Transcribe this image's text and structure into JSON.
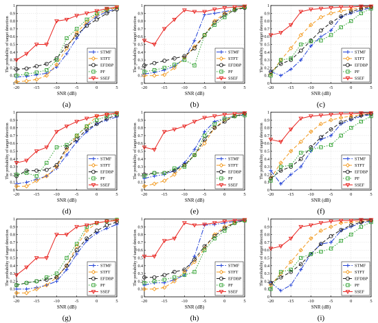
{
  "figure": {
    "xlabel": "SNR (dB)",
    "ylabel": "The probability of target detection",
    "xticks": [
      -20,
      -15,
      -10,
      -5,
      0,
      5
    ],
    "yticks": [
      0,
      0.1,
      0.2,
      0.3,
      0.4,
      0.5,
      0.6,
      0.7,
      0.8,
      0.9,
      1
    ],
    "legend_labels": [
      "STMF",
      "STFT",
      "EFDBP",
      "PF",
      "SSEF"
    ],
    "series_styles": [
      {
        "name": "STMF",
        "color": "#1f3fd6",
        "dash": "7,2,1.5,2",
        "marker": "plus"
      },
      {
        "name": "STFT",
        "color": "#f39a1e",
        "dash": "5,3",
        "marker": "diamond"
      },
      {
        "name": "EFDBP",
        "color": "#1a1a1a",
        "dash": "5,3",
        "marker": "circle"
      },
      {
        "name": "PF",
        "color": "#2ca02c",
        "dash": "1.5,2",
        "marker": "square"
      },
      {
        "name": "SSEF",
        "color": "#e8201c",
        "dash": "none",
        "marker": "triangle"
      }
    ]
  },
  "chart_data": [
    {
      "type": "line",
      "panel_label": "(a)",
      "legend_position": "bottom-right",
      "xlabel": "SNR (dB)",
      "ylabel": "The probability of target detection",
      "xlim": [
        -20,
        5
      ],
      "ylim": [
        0,
        1
      ],
      "grid": true,
      "x": [
        -20,
        -17.5,
        -15,
        -12.5,
        -10,
        -7.5,
        -5,
        -2.5,
        0,
        2.5,
        5
      ],
      "series": [
        {
          "name": "STMF",
          "values": [
            0.08,
            0.09,
            0.11,
            0.13,
            0.21,
            0.38,
            0.58,
            0.76,
            0.86,
            0.92,
            0.96
          ]
        },
        {
          "name": "STFT",
          "values": [
            0.02,
            0.03,
            0.05,
            0.1,
            0.24,
            0.45,
            0.65,
            0.79,
            0.88,
            0.94,
            0.97
          ]
        },
        {
          "name": "EFDBP",
          "values": [
            0.18,
            0.19,
            0.22,
            0.25,
            0.32,
            0.48,
            0.62,
            0.74,
            0.82,
            0.9,
            0.95
          ]
        },
        {
          "name": "PF",
          "values": [
            0.1,
            0.12,
            0.14,
            0.17,
            0.3,
            0.58,
            0.7,
            0.82,
            0.9,
            0.95,
            0.98
          ]
        },
        {
          "name": "SSEF",
          "values": [
            0.3,
            0.38,
            0.5,
            0.5,
            0.8,
            0.82,
            0.87,
            0.9,
            0.93,
            0.96,
            0.98
          ]
        }
      ]
    },
    {
      "type": "line",
      "panel_label": "(b)",
      "legend_position": "bottom-right",
      "xlabel": "SNR (dB)",
      "ylabel": "The probability of target detection",
      "xlim": [
        -20,
        5
      ],
      "ylim": [
        0,
        1
      ],
      "grid": true,
      "x": [
        -20,
        -17.5,
        -15,
        -12.5,
        -10,
        -7.5,
        -5,
        -2.5,
        0,
        2.5,
        5
      ],
      "series": [
        {
          "name": "STMF",
          "values": [
            0.12,
            0.14,
            0.17,
            0.22,
            0.32,
            0.55,
            0.88,
            0.9,
            0.92,
            0.95,
            0.97
          ]
        },
        {
          "name": "STFT",
          "values": [
            0.1,
            0.1,
            0.11,
            0.2,
            0.33,
            0.47,
            0.62,
            0.8,
            0.9,
            0.95,
            0.98
          ]
        },
        {
          "name": "EFDBP",
          "values": [
            0.23,
            0.26,
            0.29,
            0.32,
            0.35,
            0.45,
            0.62,
            0.78,
            0.88,
            0.94,
            0.97
          ]
        },
        {
          "name": "PF",
          "values": [
            0.15,
            0.17,
            0.2,
            0.24,
            0.3,
            0.23,
            0.62,
            0.75,
            0.85,
            0.95,
            0.98
          ]
        },
        {
          "name": "SSEF",
          "values": [
            0.55,
            0.5,
            0.7,
            0.82,
            0.94,
            0.92,
            0.92,
            0.95,
            0.97,
            0.98,
            0.99
          ]
        }
      ]
    },
    {
      "type": "line",
      "panel_label": "(c)",
      "legend_position": "bottom-right",
      "xlabel": "SNR (dB)",
      "ylabel": "The probability of target detection",
      "xlim": [
        -20,
        5
      ],
      "ylim": [
        0,
        1
      ],
      "grid": true,
      "x": [
        -20,
        -17.5,
        -15,
        -12.5,
        -10,
        -7.5,
        -5,
        -2.5,
        0,
        2.5,
        5
      ],
      "series": [
        {
          "name": "STMF",
          "values": [
            0.15,
            0.1,
            0.18,
            0.3,
            0.48,
            0.6,
            0.68,
            0.85,
            0.9,
            0.94,
            0.97
          ]
        },
        {
          "name": "STFT",
          "values": [
            0.12,
            0.3,
            0.45,
            0.62,
            0.75,
            0.85,
            0.9,
            0.93,
            0.95,
            0.97,
            0.98
          ]
        },
        {
          "name": "EFDBP",
          "values": [
            0.15,
            0.25,
            0.3,
            0.42,
            0.55,
            0.68,
            0.78,
            0.86,
            0.92,
            0.96,
            0.98
          ]
        },
        {
          "name": "PF",
          "values": [
            0.1,
            0.3,
            0.32,
            0.5,
            0.54,
            0.55,
            0.62,
            0.72,
            0.8,
            0.9,
            0.96
          ]
        },
        {
          "name": "SSEF",
          "values": [
            0.62,
            0.65,
            0.75,
            0.92,
            0.95,
            0.96,
            0.97,
            0.98,
            0.98,
            0.99,
            0.99
          ]
        }
      ]
    },
    {
      "type": "line",
      "panel_label": "(d)",
      "legend_position": "bottom-right",
      "xlabel": "SNR (dB)",
      "ylabel": "The probability of target detection",
      "xlim": [
        -20,
        5
      ],
      "ylim": [
        0,
        1
      ],
      "grid": true,
      "x": [
        -20,
        -17.5,
        -15,
        -12.5,
        -10,
        -7.5,
        -5,
        -2.5,
        0,
        2.5,
        5
      ],
      "series": [
        {
          "name": "STMF",
          "values": [
            0.08,
            0.1,
            0.14,
            0.18,
            0.28,
            0.45,
            0.62,
            0.75,
            0.85,
            0.9,
            0.94
          ]
        },
        {
          "name": "STFT",
          "values": [
            0.05,
            0.05,
            0.12,
            0.18,
            0.3,
            0.52,
            0.7,
            0.82,
            0.95,
            0.97,
            0.99
          ]
        },
        {
          "name": "EFDBP",
          "values": [
            0.18,
            0.25,
            0.25,
            0.26,
            0.32,
            0.55,
            0.65,
            0.78,
            0.85,
            0.92,
            0.96
          ]
        },
        {
          "name": "PF",
          "values": [
            0.2,
            0.22,
            0.18,
            0.35,
            0.55,
            0.58,
            0.7,
            0.82,
            0.9,
            0.95,
            0.98
          ]
        },
        {
          "name": "SSEF",
          "values": [
            0.35,
            0.38,
            0.5,
            0.55,
            0.75,
            0.82,
            0.88,
            0.92,
            0.95,
            0.97,
            0.99
          ]
        }
      ]
    },
    {
      "type": "line",
      "panel_label": "(e)",
      "legend_position": "bottom-right",
      "xlabel": "SNR (dB)",
      "ylabel": "The probability of target detection",
      "xlim": [
        -20,
        5
      ],
      "ylim": [
        0,
        1
      ],
      "grid": true,
      "x": [
        -20,
        -17.5,
        -15,
        -12.5,
        -10,
        -7.5,
        -5,
        -2.5,
        0,
        2.5,
        5
      ],
      "series": [
        {
          "name": "STMF",
          "values": [
            0.15,
            0.18,
            0.2,
            0.25,
            0.35,
            0.52,
            0.75,
            0.88,
            0.92,
            0.95,
            0.97
          ]
        },
        {
          "name": "STFT",
          "values": [
            0.05,
            0.08,
            0.12,
            0.2,
            0.32,
            0.45,
            0.6,
            0.8,
            0.9,
            0.95,
            0.98
          ]
        },
        {
          "name": "EFDBP",
          "values": [
            0.2,
            0.22,
            0.22,
            0.25,
            0.32,
            0.45,
            0.65,
            0.8,
            0.88,
            0.95,
            0.98
          ]
        },
        {
          "name": "PF",
          "values": [
            0.18,
            0.22,
            0.22,
            0.28,
            0.3,
            0.45,
            0.7,
            0.85,
            0.92,
            0.95,
            0.96
          ]
        },
        {
          "name": "SSEF",
          "values": [
            0.55,
            0.52,
            0.75,
            0.78,
            0.82,
            0.88,
            0.93,
            0.95,
            0.97,
            0.98,
            0.99
          ]
        }
      ]
    },
    {
      "type": "line",
      "panel_label": "(f)",
      "legend_position": "bottom-right",
      "xlabel": "SNR (dB)",
      "ylabel": "The probability of target detection",
      "xlim": [
        -20,
        5
      ],
      "ylim": [
        0,
        1
      ],
      "grid": true,
      "x": [
        -20,
        -17.5,
        -15,
        -12.5,
        -10,
        -7.5,
        -5,
        -2.5,
        0,
        2.5,
        5
      ],
      "series": [
        {
          "name": "STMF",
          "values": [
            0.25,
            0.08,
            0.2,
            0.3,
            0.5,
            0.65,
            0.7,
            0.85,
            0.9,
            0.95,
            0.97
          ]
        },
        {
          "name": "STFT",
          "values": [
            0.15,
            0.35,
            0.5,
            0.62,
            0.75,
            0.85,
            0.9,
            0.93,
            0.95,
            0.97,
            0.98
          ]
        },
        {
          "name": "EFDBP",
          "values": [
            0.15,
            0.25,
            0.3,
            0.4,
            0.55,
            0.68,
            0.78,
            0.87,
            0.92,
            0.96,
            0.98
          ]
        },
        {
          "name": "PF",
          "values": [
            0.12,
            0.3,
            0.32,
            0.48,
            0.52,
            0.55,
            0.58,
            0.7,
            0.8,
            0.88,
            0.95
          ]
        },
        {
          "name": "SSEF",
          "values": [
            0.65,
            0.62,
            0.78,
            0.92,
            0.95,
            0.96,
            0.97,
            0.98,
            0.98,
            0.99,
            0.99
          ]
        }
      ]
    },
    {
      "type": "line",
      "panel_label": "(g)",
      "legend_position": "bottom-right",
      "xlabel": "SNR (dB)",
      "ylabel": "The probability of target detection",
      "xlim": [
        -20,
        5
      ],
      "ylim": [
        0,
        1
      ],
      "grid": true,
      "x": [
        -20,
        -17.5,
        -15,
        -12.5,
        -10,
        -7.5,
        -5,
        -2.5,
        0,
        2.5,
        5
      ],
      "series": [
        {
          "name": "STMF",
          "values": [
            0.1,
            0.1,
            0.12,
            0.15,
            0.2,
            0.35,
            0.55,
            0.72,
            0.82,
            0.88,
            0.93
          ]
        },
        {
          "name": "STFT",
          "values": [
            0.05,
            0.05,
            0.1,
            0.15,
            0.25,
            0.4,
            0.65,
            0.85,
            0.95,
            0.97,
            0.99
          ]
        },
        {
          "name": "EFDBP",
          "values": [
            0.15,
            0.18,
            0.2,
            0.22,
            0.25,
            0.4,
            0.6,
            0.75,
            0.85,
            0.92,
            0.96
          ]
        },
        {
          "name": "PF",
          "values": [
            0.15,
            0.18,
            0.2,
            0.25,
            0.3,
            0.5,
            0.68,
            0.9,
            0.95,
            0.97,
            0.99
          ]
        },
        {
          "name": "SSEF",
          "values": [
            0.28,
            0.38,
            0.5,
            0.5,
            0.8,
            0.8,
            0.9,
            0.92,
            0.95,
            0.97,
            0.98
          ]
        }
      ]
    },
    {
      "type": "line",
      "panel_label": "(h)",
      "legend_position": "bottom-right",
      "xlabel": "SNR (dB)",
      "ylabel": "The probability of target detection",
      "xlim": [
        -20,
        5
      ],
      "ylim": [
        0,
        1
      ],
      "grid": true,
      "x": [
        -20,
        -17.5,
        -15,
        -12.5,
        -10,
        -7.5,
        -5,
        -2.5,
        0,
        2.5,
        5
      ],
      "series": [
        {
          "name": "STMF",
          "values": [
            0.15,
            0.18,
            0.18,
            0.22,
            0.28,
            0.52,
            0.92,
            0.93,
            0.95,
            0.97,
            0.98
          ]
        },
        {
          "name": "STFT",
          "values": [
            0.1,
            0.1,
            0.12,
            0.2,
            0.32,
            0.45,
            0.62,
            0.8,
            0.9,
            0.95,
            0.98
          ]
        },
        {
          "name": "EFDBP",
          "values": [
            0.25,
            0.25,
            0.28,
            0.32,
            0.35,
            0.48,
            0.65,
            0.78,
            0.88,
            0.95,
            0.98
          ]
        },
        {
          "name": "PF",
          "values": [
            0.18,
            0.2,
            0.22,
            0.25,
            0.28,
            0.32,
            0.6,
            0.75,
            0.85,
            0.95,
            0.98
          ]
        },
        {
          "name": "SSEF",
          "values": [
            0.52,
            0.52,
            0.72,
            0.75,
            0.95,
            0.92,
            0.93,
            0.95,
            0.97,
            0.98,
            0.99
          ]
        }
      ]
    },
    {
      "type": "line",
      "panel_label": "(i)",
      "legend_position": "bottom-right",
      "xlabel": "SNR (dB)",
      "ylabel": "The probability of target detection",
      "xlim": [
        -20,
        5
      ],
      "ylim": [
        0,
        1
      ],
      "grid": true,
      "x": [
        -20,
        -17.5,
        -15,
        -12.5,
        -10,
        -7.5,
        -5,
        -2.5,
        0,
        2.5,
        5
      ],
      "series": [
        {
          "name": "STMF",
          "values": [
            0.18,
            0.08,
            0.15,
            0.35,
            0.55,
            0.68,
            0.7,
            0.85,
            0.9,
            0.95,
            0.97
          ]
        },
        {
          "name": "STFT",
          "values": [
            0.15,
            0.3,
            0.45,
            0.6,
            0.75,
            0.85,
            0.9,
            0.95,
            0.96,
            0.97,
            0.98
          ]
        },
        {
          "name": "EFDBP",
          "values": [
            0.18,
            0.25,
            0.32,
            0.42,
            0.55,
            0.68,
            0.78,
            0.86,
            0.92,
            0.96,
            0.98
          ]
        },
        {
          "name": "PF",
          "values": [
            0.1,
            0.32,
            0.35,
            0.5,
            0.55,
            0.58,
            0.62,
            0.72,
            0.8,
            0.9,
            0.96
          ]
        },
        {
          "name": "SSEF",
          "values": [
            0.62,
            0.65,
            0.75,
            0.9,
            0.92,
            0.95,
            0.97,
            0.98,
            0.98,
            0.99,
            0.99
          ]
        }
      ]
    }
  ]
}
